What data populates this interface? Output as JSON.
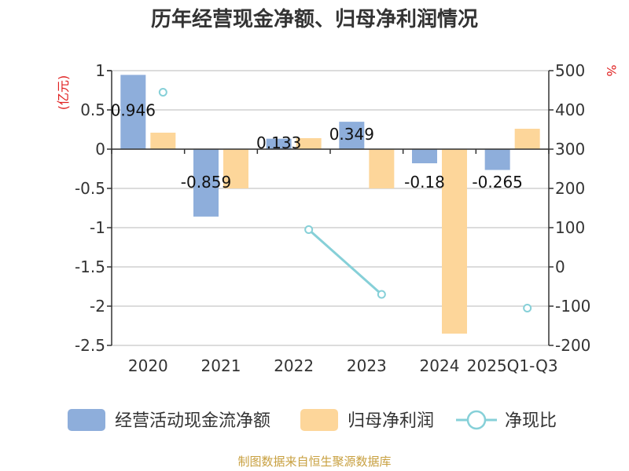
{
  "chart_data": {
    "type": "bar+line",
    "title": "历年经营现金净额、归母净利润情况",
    "categories": [
      "2020",
      "2021",
      "2022",
      "2023",
      "2024",
      "2025Q1-Q3"
    ],
    "series": [
      {
        "name": "经营活动现金流净额",
        "type": "bar",
        "axis": "left",
        "values": [
          0.946,
          -0.859,
          0.133,
          0.349,
          -0.18,
          -0.265
        ],
        "labels": [
          "0.946",
          "-0.859",
          "0.133",
          "0.349",
          "-0.18",
          "-0.265"
        ],
        "color": "#8eaedb"
      },
      {
        "name": "归母净利润",
        "type": "bar",
        "axis": "left",
        "values": [
          0.21,
          -0.5,
          0.14,
          -0.5,
          -2.35,
          0.26
        ],
        "color": "#fdd69a"
      },
      {
        "name": "净现比",
        "type": "line",
        "axis": "right",
        "values": [
          445,
          null,
          95,
          -70,
          null,
          -105
        ],
        "color": "#86d0d8"
      }
    ],
    "y_left": {
      "label": "(亿元)",
      "ylim": [
        -2.5,
        1
      ],
      "ticks": [
        1,
        0.5,
        0,
        -0.5,
        -1,
        -1.5,
        -2,
        -2.5
      ],
      "tick_labels": [
        "1",
        "0.5",
        "0",
        "-0.5",
        "-1",
        "-1.5",
        "-2",
        "-2.5"
      ]
    },
    "y_right": {
      "label": "%",
      "ylim": [
        -200,
        500
      ],
      "ticks": [
        500,
        400,
        300,
        200,
        100,
        0,
        -100,
        -200
      ],
      "tick_labels": [
        "500",
        "400",
        "300",
        "200",
        "100",
        "0",
        "-100",
        "-200"
      ]
    },
    "grid": true,
    "legend_position": "bottom",
    "source": "制图数据来自恒生聚源数据库"
  }
}
